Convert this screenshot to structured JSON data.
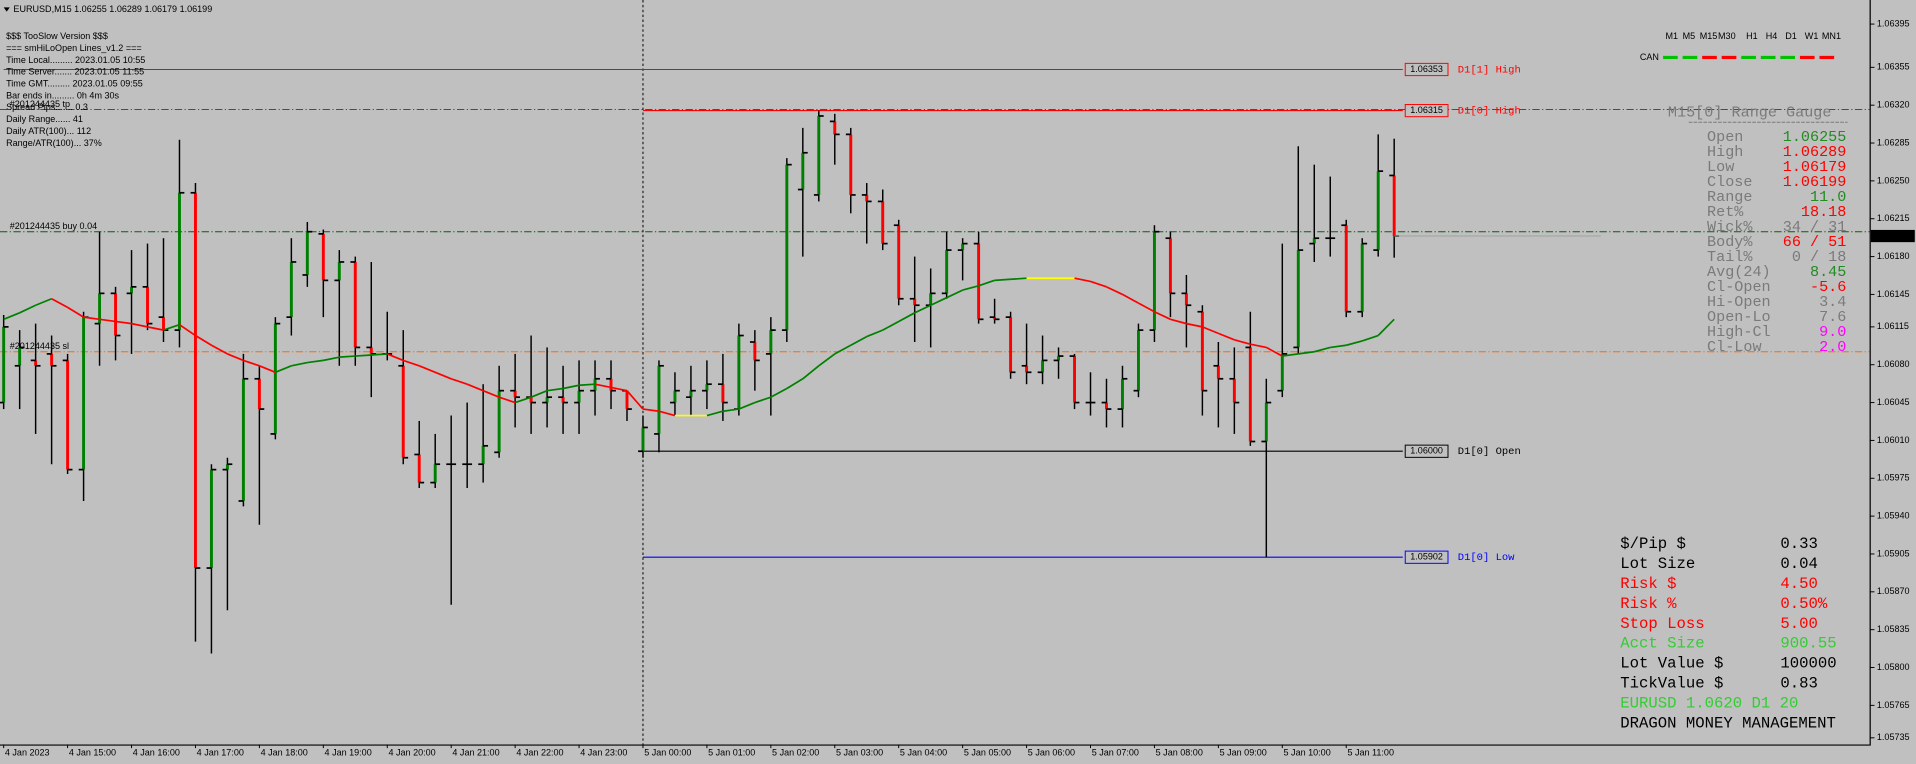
{
  "header": {
    "symbol": "EURUSD,M15 1.06255 1.06289 1.06179 1.06199"
  },
  "info_lines": [
    "$$$ TooSlow Version $$$",
    "=== smHiLoOpen Lines_v1.2 ===",
    "Time Local......... 2023.01.05 10:55",
    "Time Server....... 2023.01.05 11:55",
    "Time GMT......... 2023.01.05 09:55",
    "Bar ends in......... 0h 4m 30s",
    "Spread Pips....... 0.3",
    "Daily Range...... 41",
    "Daily ATR(100)... 112",
    "Range/ATR(100)... 37%"
  ],
  "timeframes": {
    "items": [
      "M1",
      "M5",
      "M15",
      "M30",
      "H1",
      "H4",
      "D1",
      "W1",
      "MN1"
    ],
    "active": "M15",
    "color": "#505050",
    "active_color": "#ff00ff"
  },
  "can": {
    "label": "CAN",
    "colors": [
      "#00c000",
      "#00c000",
      "#ff0000",
      "#ff0000",
      "#00c000",
      "#00c000",
      "#00c000",
      "#ff0000",
      "#ff0000"
    ]
  },
  "gauge": {
    "title": "M15[0] Range Gauge",
    "label_color": "#7a7a7a",
    "rows": [
      {
        "label": "Open",
        "value": "1.06255",
        "color": "#228b22"
      },
      {
        "label": "High",
        "value": "1.06289",
        "color": "#ff0000"
      },
      {
        "label": "Low",
        "value": "1.06179",
        "color": "#ff0000"
      },
      {
        "label": "Close",
        "value": "1.06199",
        "color": "#ff0000"
      },
      {
        "label": "Range",
        "value": "11.0",
        "color": "#228b22"
      },
      {
        "label": "Ret%",
        "value": "18.18",
        "color": "#ff0000"
      },
      {
        "label": "Wick%",
        "value": "34 / 31",
        "color": "#7a7a7a"
      },
      {
        "label": "Body%",
        "value": "66 / 51",
        "color": "#ff0000"
      },
      {
        "label": "Tail%",
        "value": "0 / 18",
        "color": "#7a7a7a"
      },
      {
        "label": "Avg(24)",
        "value": "8.45",
        "color": "#228b22"
      },
      {
        "label": "Cl-Open",
        "value": "-5.6",
        "color": "#ff0000"
      },
      {
        "label": "Hi-Open",
        "value": "3.4",
        "color": "#7a7a7a"
      },
      {
        "label": "Open-Lo",
        "value": "7.6",
        "color": "#7a7a7a"
      },
      {
        "label": "High-Cl",
        "value": "9.0",
        "color": "#ff00ff"
      },
      {
        "label": "Cl-Low",
        "value": "2.0",
        "color": "#ff00ff"
      }
    ]
  },
  "money": {
    "rows": [
      {
        "label": "$/Pip $",
        "value": "0.33",
        "color": "#000000"
      },
      {
        "label": "Lot Size",
        "value": "0.04",
        "color": "#000000"
      },
      {
        "label": "Risk $",
        "value": "4.50",
        "color": "#ff0000"
      },
      {
        "label": "Risk %",
        "value": "0.50%",
        "color": "#ff0000"
      },
      {
        "label": "Stop Loss",
        "value": "5.00",
        "color": "#ff0000"
      },
      {
        "label": "Acct Size",
        "value": "900.55",
        "color": "#32cd32"
      },
      {
        "label": "Lot Value $",
        "value": "100000",
        "color": "#000000"
      },
      {
        "label": "TickValue $",
        "value": "0.83",
        "color": "#000000"
      }
    ],
    "footer": [
      {
        "text": "EURUSD 1.0620 D1 20",
        "color": "#32cd32"
      },
      {
        "text": "DRAGON MONEY MANAGEMENT",
        "color": "#000000"
      }
    ]
  },
  "chart_data": {
    "type": "ohlc",
    "categories": [
      "4 Jan 2023",
      null,
      null,
      null,
      "4 Jan 15:00",
      null,
      null,
      null,
      "4 Jan 16:00",
      null,
      null,
      null,
      "4 Jan 17:00",
      null,
      null,
      null,
      "4 Jan 18:00",
      null,
      null,
      null,
      "4 Jan 19:00",
      null,
      null,
      null,
      "4 Jan 20:00",
      null,
      null,
      null,
      "4 Jan 21:00",
      null,
      null,
      null,
      "4 Jan 22:00",
      null,
      null,
      null,
      "4 Jan 23:00",
      null,
      null,
      null,
      "5 Jan 00:00",
      null,
      null,
      null,
      "5 Jan 01:00",
      null,
      null,
      null,
      "5 Jan 02:00",
      null,
      null,
      null,
      "5 Jan 03:00",
      null,
      null,
      null,
      "5 Jan 04:00",
      null,
      null,
      null,
      "5 Jan 05:00",
      null,
      null,
      null,
      "5 Jan 06:00",
      null,
      null,
      null,
      "5 Jan 07:00",
      null,
      null,
      null,
      "5 Jan 08:00",
      null,
      null,
      null,
      "5 Jan 09:00",
      null,
      null,
      null,
      "5 Jan 10:00",
      null,
      null,
      null,
      "5 Jan 11:00",
      null,
      null,
      null
    ],
    "open": [
      1.06045,
      1.06079,
      1.06084,
      1.0609,
      1.06084,
      1.05983,
      1.06118,
      1.06146,
      1.06146,
      1.06152,
      1.06124,
      1.06112,
      1.06239,
      1.05892,
      1.05983,
      1.05954,
      1.06067,
      1.06016,
      1.06124,
      1.06163,
      1.06201,
      1.06158,
      1.06175,
      1.06096,
      1.0609,
      1.06079,
      1.05997,
      1.05971,
      1.05988,
      1.05988,
      1.05988,
      1.05999,
      1.06056,
      1.0605,
      1.06045,
      1.0605,
      1.06045,
      1.06056,
      1.06067,
      1.06056,
      1.06,
      1.06016,
      1.06045,
      1.0605,
      1.06056,
      1.06062,
      1.06039,
      1.06101,
      1.0609,
      1.06112,
      1.06242,
      1.06237,
      1.06305,
      1.06293,
      1.06237,
      1.06231,
      1.06209,
      1.06141,
      1.06135,
      1.06146,
      1.06186,
      1.06192,
      1.06124,
      1.06124,
      1.06079,
      1.06073,
      1.06084,
      1.06088,
      1.06045,
      1.06045,
      1.06039,
      1.06056,
      1.06112,
      1.06197,
      1.06146,
      1.06129,
      1.06079,
      1.06067,
      1.06096,
      1.06009,
      1.06056,
      1.06096,
      1.06192,
      1.06197,
      1.06209,
      1.06129,
      1.06186,
      1.06255
    ],
    "high": [
      1.06126,
      1.06112,
      1.06118,
      1.06107,
      1.0609,
      1.06129,
      1.06203,
      1.06152,
      1.06186,
      1.06192,
      1.06197,
      1.06288,
      1.06248,
      1.05988,
      1.05994,
      1.0609,
      1.06079,
      1.06124,
      1.06197,
      1.06212,
      1.06205,
      1.06186,
      1.0618,
      1.06175,
      1.06129,
      1.06112,
      1.06028,
      1.06016,
      1.06033,
      1.06045,
      1.06062,
      1.06079,
      1.0609,
      1.06107,
      1.06096,
      1.06079,
      1.06084,
      1.06084,
      1.06084,
      1.06056,
      1.06033,
      1.06084,
      1.06073,
      1.06079,
      1.06084,
      1.0609,
      1.06118,
      1.06112,
      1.06124,
      1.06271,
      1.06299,
      1.06315,
      1.06312,
      1.06299,
      1.06248,
      1.06242,
      1.06214,
      1.0618,
      1.06169,
      1.06203,
      1.06197,
      1.06203,
      1.06141,
      1.06129,
      1.06118,
      1.06107,
      1.06096,
      1.0609,
      1.06073,
      1.06067,
      1.06079,
      1.06118,
      1.06209,
      1.06203,
      1.06163,
      1.06135,
      1.06101,
      1.06096,
      1.06129,
      1.06067,
      1.06192,
      1.06282,
      1.06265,
      1.06254,
      1.06214,
      1.06197,
      1.06293,
      1.06289
    ],
    "low": [
      1.06039,
      1.06039,
      1.06016,
      1.05988,
      1.05979,
      1.05954,
      1.06079,
      1.06084,
      1.0609,
      1.06112,
      1.06101,
      1.06096,
      1.05824,
      1.05813,
      1.05853,
      1.05949,
      1.05932,
      1.06011,
      1.06107,
      1.06152,
      1.06124,
      1.06079,
      1.06079,
      1.0605,
      1.06084,
      1.05988,
      1.05966,
      1.05966,
      1.05858,
      1.05966,
      1.05971,
      1.05994,
      1.06022,
      1.06016,
      1.06022,
      1.06016,
      1.06016,
      1.06033,
      1.06039,
      1.06028,
      1.05994,
      1.05999,
      1.06033,
      1.06033,
      1.06039,
      1.06028,
      1.06033,
      1.06056,
      1.06033,
      1.06101,
      1.0618,
      1.06231,
      1.06265,
      1.0622,
      1.06192,
      1.06186,
      1.06135,
      1.06101,
      1.06096,
      1.06141,
      1.06158,
      1.06118,
      1.06118,
      1.06067,
      1.06062,
      1.06062,
      1.06067,
      1.06039,
      1.06033,
      1.06022,
      1.06022,
      1.0605,
      1.06101,
      1.06124,
      1.06096,
      1.06033,
      1.06022,
      1.06016,
      1.06005,
      1.05902,
      1.0605,
      1.0609,
      1.06175,
      1.0618,
      1.06124,
      1.06124,
      1.0618,
      1.06179
    ],
    "close": [
      1.06115,
      1.06096,
      1.06079,
      1.06079,
      1.05983,
      1.06124,
      1.06146,
      1.06107,
      1.06152,
      1.06118,
      1.06112,
      1.06239,
      1.05892,
      1.05983,
      1.05988,
      1.06067,
      1.06039,
      1.06118,
      1.06175,
      1.06203,
      1.06158,
      1.06175,
      1.06096,
      1.0609,
      1.0609,
      1.05994,
      1.05971,
      1.05988,
      1.05988,
      1.05988,
      1.06005,
      1.06056,
      1.0605,
      1.06045,
      1.0605,
      1.06045,
      1.06056,
      1.06067,
      1.06056,
      1.06039,
      1.06022,
      1.06079,
      1.06056,
      1.06056,
      1.06062,
      1.06045,
      1.06107,
      1.06084,
      1.06112,
      1.06265,
      1.06276,
      1.0631,
      1.06293,
      1.06237,
      1.06231,
      1.06192,
      1.06141,
      1.06135,
      1.06146,
      1.06186,
      1.06192,
      1.06122,
      1.06122,
      1.06073,
      1.06073,
      1.06084,
      1.06088,
      1.06045,
      1.06045,
      1.06039,
      1.06067,
      1.06112,
      1.06203,
      1.06146,
      1.06135,
      1.06056,
      1.06067,
      1.06045,
      1.06009,
      1.06045,
      1.0609,
      1.06186,
      1.06197,
      1.06197,
      1.06129,
      1.06192,
      1.06259,
      1.06199
    ],
    "ma": [
      1.06122,
      1.06128,
      1.06135,
      1.06141,
      1.06133,
      1.06124,
      1.06122,
      1.0612,
      1.06118,
      1.06115,
      1.06112,
      1.06117,
      1.06107,
      1.06098,
      1.0609,
      1.06084,
      1.06079,
      1.06073,
      1.06079,
      1.06082,
      1.06084,
      1.06087,
      1.06088,
      1.06089,
      1.0609,
      1.06084,
      1.06079,
      1.06073,
      1.06067,
      1.06062,
      1.06056,
      1.0605,
      1.06045,
      1.0605,
      1.06056,
      1.06058,
      1.06061,
      1.06062,
      1.06059,
      1.06056,
      1.06039,
      1.06037,
      1.06033,
      1.06033,
      1.06033,
      1.06037,
      1.06039,
      1.06045,
      1.0605,
      1.06058,
      1.06067,
      1.06079,
      1.0609,
      1.06098,
      1.06106,
      1.06112,
      1.0612,
      1.06128,
      1.06135,
      1.06142,
      1.06149,
      1.06153,
      1.06158,
      1.06159,
      1.0616,
      1.0616,
      1.0616,
      1.0616,
      1.06157,
      1.06152,
      1.06145,
      1.06137,
      1.06129,
      1.06122,
      1.06118,
      1.06115,
      1.06109,
      1.06103,
      1.06099,
      1.06096,
      1.06088,
      1.0609,
      1.06092,
      1.06096,
      1.06098,
      1.06102,
      1.06107,
      1.06122
    ],
    "up_color": "#008000",
    "down_color": "#ff0000",
    "ma_colors": {
      "up": "#008000",
      "down": "#ff0000",
      "flat": "#ffff00"
    },
    "ylim": [
      1.0573,
      1.06415
    ],
    "yticks": [
      1.06395,
      1.06355,
      {
        "value": 1.0632,
        "label": "1.06320"
      },
      1.06285,
      {
        "value": 1.0625,
        "label": "1.06250"
      },
      1.06215,
      {
        "value": 1.0618,
        "label": "1.06180"
      },
      1.06145,
      1.06115,
      {
        "value": 1.0608,
        "label": "1.06080"
      },
      1.06045,
      {
        "value": 1.0601,
        "label": "1.06010"
      },
      1.05975,
      {
        "value": 1.0594,
        "label": "1.05940"
      },
      1.05905,
      {
        "value": 1.0587,
        "label": "1.05870"
      },
      1.05835,
      {
        "value": 1.058,
        "label": "1.05800"
      },
      1.05765,
      1.05735
    ],
    "levels": [
      {
        "name": "D1[1] High",
        "price": 1.06353,
        "color": "#ff0000",
        "from": "4 Jan 2023"
      },
      {
        "name": "D1[0] High",
        "price": 1.06315,
        "color": "#ff0000",
        "from": "5 Jan 00:00"
      },
      {
        "name": "D1[0] Open",
        "price": {
          "value": 1.06,
          "label": "1.06000"
        },
        "color": "#000000",
        "from": "5 Jan 00:00"
      },
      {
        "name": "D1[0] Low",
        "price": 1.05902,
        "color": "#0000ff",
        "from": "5 Jan 00:00"
      }
    ],
    "orders": [
      {
        "label": "#201244435 tp",
        "price": 1.06316,
        "color": "#ff0000"
      },
      {
        "label": "#201244435 buy 0.04",
        "price": 1.06203,
        "color": "#006400"
      },
      {
        "label": "#201244435 sl",
        "price": 1.06092,
        "color": "#ff6a00"
      }
    ]
  }
}
